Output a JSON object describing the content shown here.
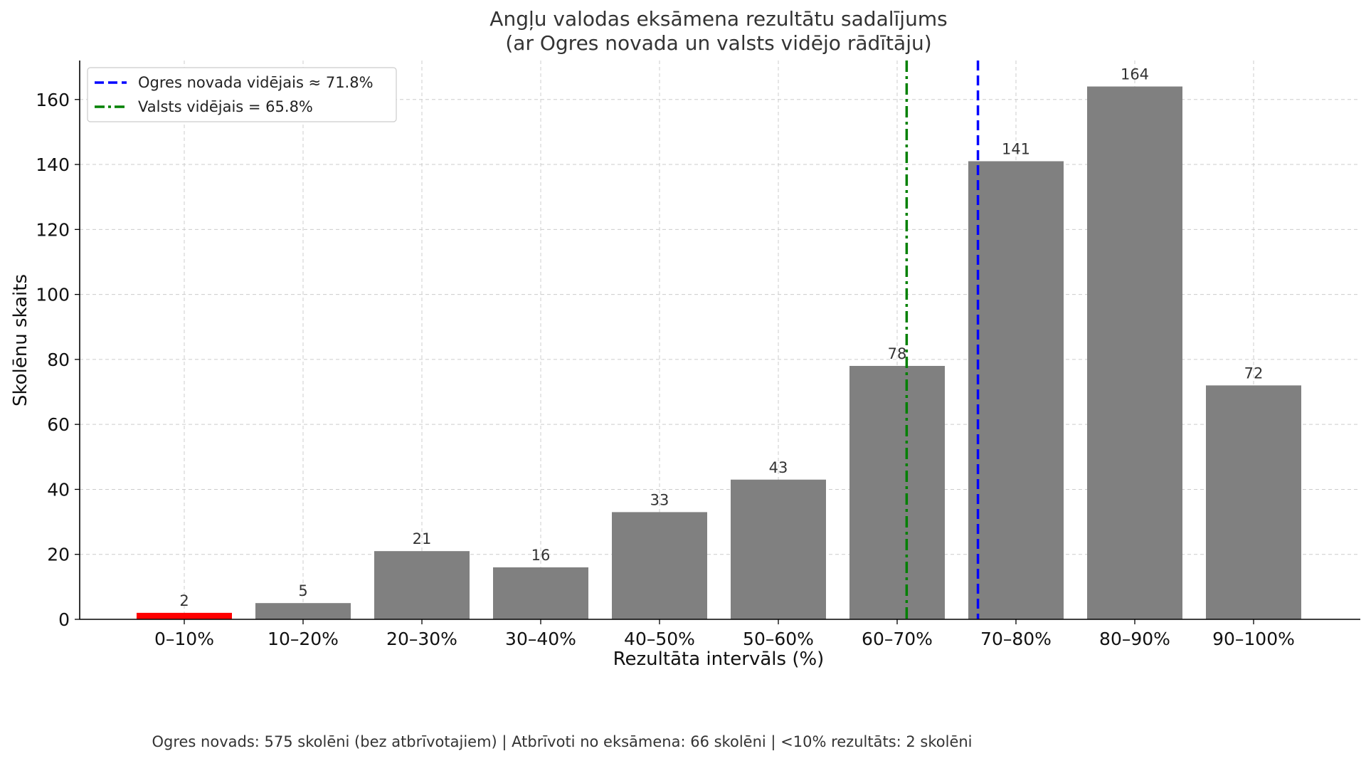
{
  "chart_data": {
    "type": "bar",
    "title": "Angļu valodas eksāmena rezultātu sadalījums",
    "subtitle": "(ar Ogres novada un valsts vidējo rādītāju)",
    "xlabel": "Rezultāta intervāls (%)",
    "ylabel": "Skolēnu skaits",
    "categories": [
      "0–10%",
      "10–20%",
      "20–30%",
      "30–40%",
      "40–50%",
      "50–60%",
      "60–70%",
      "70–80%",
      "80–90%",
      "90–100%"
    ],
    "values": [
      2,
      5,
      21,
      16,
      33,
      43,
      78,
      141,
      164,
      72
    ],
    "data_labels": [
      "2",
      "5",
      "21",
      "16",
      "33",
      "43",
      "78",
      "141",
      "164",
      "72"
    ],
    "bar_colors": [
      "#ff0000",
      "#808080",
      "#808080",
      "#808080",
      "#808080",
      "#808080",
      "#808080",
      "#808080",
      "#808080",
      "#808080"
    ],
    "ylim": [
      0,
      172
    ],
    "yticks": [
      0,
      20,
      40,
      60,
      80,
      100,
      120,
      140,
      160
    ],
    "ytick_labels": [
      "0",
      "20",
      "40",
      "60",
      "80",
      "100",
      "120",
      "140",
      "160"
    ],
    "grid": true,
    "reference_lines": [
      {
        "label": "Ogres novada vidējais ≈ 71.8%",
        "value": 71.8,
        "color": "#0000ff",
        "style": "dashed"
      },
      {
        "label": "Valsts vidējais = 65.8%",
        "value": 65.8,
        "color": "#008000",
        "style": "dashdot"
      }
    ],
    "legend_position": "top-left"
  },
  "footnote": "Ogres novads: 575 skolēni (bez atbrīvotajiem) | Atbrīvoti no eksāmena: 66 skolēni | <10% rezultāts: 2 skolēni"
}
